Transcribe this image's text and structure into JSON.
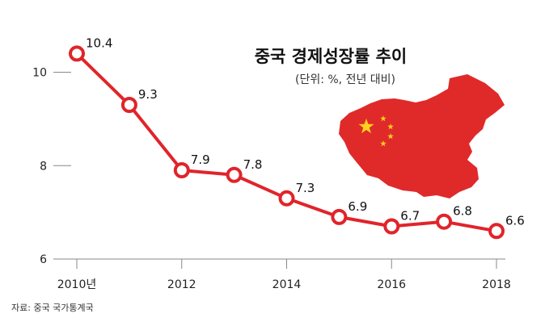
{
  "chart_data": {
    "type": "line",
    "title": "중국 경제성장률 추이",
    "subtitle": "(단위: %, 전년 대비)",
    "source": "자료: 중국 국가통계국",
    "x": [
      2010,
      2011,
      2012,
      2013,
      2014,
      2015,
      2016,
      2017,
      2018
    ],
    "series": [
      {
        "values": [
          10.4,
          9.3,
          7.9,
          7.8,
          7.3,
          6.9,
          6.7,
          6.8,
          6.6
        ],
        "labels": [
          "10.4",
          "9.3",
          "7.9",
          "7.8",
          "7.3",
          "6.9",
          "6.7",
          "6.8",
          "6.6"
        ]
      }
    ],
    "xticks": [
      {
        "value": 2010,
        "label": "2010년"
      },
      {
        "value": 2012,
        "label": "2012"
      },
      {
        "value": 2014,
        "label": "2014"
      },
      {
        "value": 2016,
        "label": "2016"
      },
      {
        "value": 2018,
        "label": "2018"
      }
    ],
    "yticks": [
      {
        "value": 6,
        "label": "6"
      },
      {
        "value": 8,
        "label": "8"
      },
      {
        "value": 10,
        "label": "10"
      }
    ],
    "xlim": [
      2010,
      2018
    ],
    "ylim": [
      6,
      10.7
    ],
    "grid": false,
    "line_color": "#e0242b",
    "map_color": "#e02a2a",
    "star_color": "#ffd21f"
  }
}
